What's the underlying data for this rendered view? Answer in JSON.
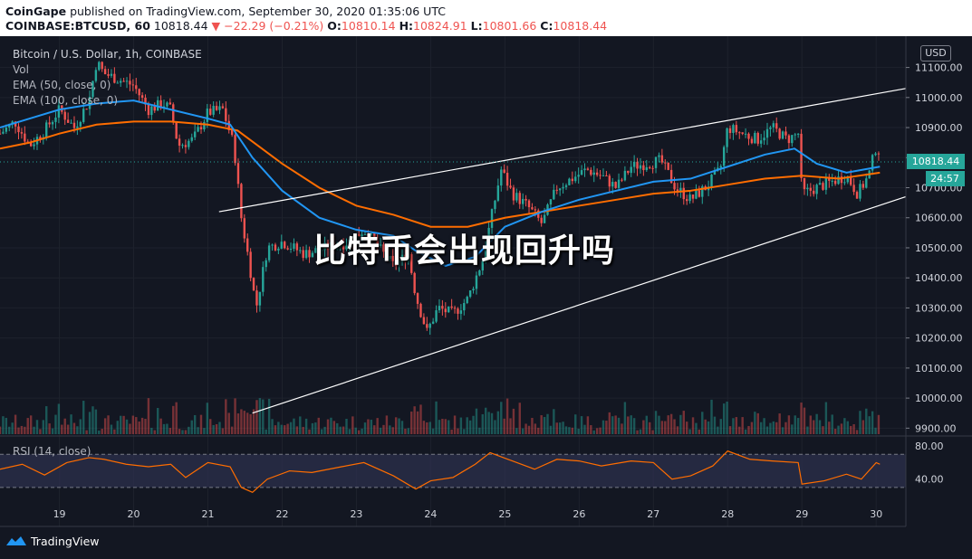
{
  "header": {
    "publisher": "CoinGape",
    "published_text": "published on TradingView.com, September 30, 2020 01:35:06 UTC",
    "symbol": "COINBASE:BTCUSD, 60",
    "last": "10818.44",
    "change": "−22.29 (−0.21%)",
    "o_label": "O:",
    "o_value": "10810.14",
    "h_label": "H:",
    "h_value": "10824.91",
    "l_label": "L:",
    "l_value": "10801.66",
    "c_label": "C:",
    "c_value": "10818.44"
  },
  "legend": {
    "title": "Bitcoin / U.S. Dollar, 1h, COINBASE",
    "vol": "Vol",
    "ema50": "EMA (50, close, 0)",
    "ema100": "EMA (100, close, 0)"
  },
  "watermark": "比特币会出现回升吗",
  "currency_button": "USD",
  "price_tag": "10818.44",
  "countdown_tag": "24:57",
  "rsi_label": "RSI (14, close)",
  "footer": "TradingView",
  "colors": {
    "up": "#26a69a",
    "down": "#ef5350",
    "ema50": "#2196f3",
    "ema100": "#ff6d00",
    "rsi": "#ff6d00",
    "rsi_band": "#2a2e4a",
    "bg": "#131722"
  },
  "chart_data": {
    "type": "candlestick",
    "title": "Bitcoin / U.S. Dollar, 1h, COINBASE",
    "ylim": [
      9880,
      11180
    ],
    "y_ticks": [
      "11100.00",
      "11000.00",
      "10900.00",
      "10800.00",
      "10700.00",
      "10600.00",
      "10500.00",
      "10400.00",
      "10300.00",
      "10200.00",
      "10100.00",
      "10000.00",
      "9900.00"
    ],
    "y_tick_values": [
      11100,
      11000,
      10900,
      10800,
      10700,
      10600,
      10500,
      10400,
      10300,
      10200,
      10100,
      10000,
      9900
    ],
    "x_ticks": [
      "19",
      "20",
      "21",
      "22",
      "23",
      "24",
      "25",
      "26",
      "27",
      "28",
      "29",
      "30"
    ],
    "x_tick_days": [
      19,
      20,
      21,
      22,
      23,
      24,
      25,
      26,
      27,
      28,
      29,
      30
    ],
    "x_range_days": [
      18.2,
      30.4
    ],
    "close_path": [
      [
        18.2,
        10880
      ],
      [
        18.4,
        10920
      ],
      [
        18.6,
        10840
      ],
      [
        18.8,
        10890
      ],
      [
        19.0,
        10960
      ],
      [
        19.2,
        10900
      ],
      [
        19.4,
        10990
      ],
      [
        19.5,
        11120
      ],
      [
        19.6,
        11080
      ],
      [
        19.8,
        11060
      ],
      [
        20.0,
        11040
      ],
      [
        20.2,
        10960
      ],
      [
        20.4,
        10980
      ],
      [
        20.5,
        10960
      ],
      [
        20.6,
        10840
      ],
      [
        20.8,
        10860
      ],
      [
        21.0,
        10950
      ],
      [
        21.2,
        10960
      ],
      [
        21.35,
        10840
      ],
      [
        21.45,
        10600
      ],
      [
        21.55,
        10460
      ],
      [
        21.65,
        10300
      ],
      [
        21.8,
        10500
      ],
      [
        22.0,
        10520
      ],
      [
        22.3,
        10480
      ],
      [
        22.6,
        10500
      ],
      [
        22.9,
        10520
      ],
      [
        23.1,
        10560
      ],
      [
        23.3,
        10500
      ],
      [
        23.5,
        10440
      ],
      [
        23.7,
        10480
      ],
      [
        23.8,
        10340
      ],
      [
        23.95,
        10220
      ],
      [
        24.1,
        10300
      ],
      [
        24.3,
        10280
      ],
      [
        24.5,
        10330
      ],
      [
        24.7,
        10460
      ],
      [
        24.8,
        10580
      ],
      [
        24.95,
        10760
      ],
      [
        25.1,
        10680
      ],
      [
        25.3,
        10640
      ],
      [
        25.5,
        10580
      ],
      [
        25.7,
        10700
      ],
      [
        25.9,
        10730
      ],
      [
        26.1,
        10760
      ],
      [
        26.3,
        10740
      ],
      [
        26.5,
        10700
      ],
      [
        26.7,
        10770
      ],
      [
        26.9,
        10780
      ],
      [
        27.1,
        10790
      ],
      [
        27.3,
        10700
      ],
      [
        27.5,
        10660
      ],
      [
        27.7,
        10700
      ],
      [
        27.9,
        10760
      ],
      [
        28.0,
        10900
      ],
      [
        28.2,
        10880
      ],
      [
        28.4,
        10860
      ],
      [
        28.6,
        10900
      ],
      [
        28.8,
        10860
      ],
      [
        28.95,
        10880
      ],
      [
        29.0,
        10680
      ],
      [
        29.2,
        10700
      ],
      [
        29.4,
        10720
      ],
      [
        29.6,
        10740
      ],
      [
        29.75,
        10680
      ],
      [
        29.9,
        10740
      ],
      [
        30.0,
        10840
      ],
      [
        30.05,
        10818
      ]
    ],
    "ema50": [
      [
        18.2,
        10900
      ],
      [
        18.6,
        10930
      ],
      [
        19.0,
        10960
      ],
      [
        19.5,
        10980
      ],
      [
        20.0,
        10990
      ],
      [
        20.5,
        10960
      ],
      [
        21.0,
        10930
      ],
      [
        21.3,
        10910
      ],
      [
        21.6,
        10800
      ],
      [
        22.0,
        10690
      ],
      [
        22.5,
        10600
      ],
      [
        23.0,
        10560
      ],
      [
        23.5,
        10540
      ],
      [
        23.8,
        10490
      ],
      [
        24.2,
        10440
      ],
      [
        24.6,
        10470
      ],
      [
        25.0,
        10570
      ],
      [
        25.5,
        10620
      ],
      [
        26.0,
        10660
      ],
      [
        26.5,
        10690
      ],
      [
        27.0,
        10720
      ],
      [
        27.5,
        10730
      ],
      [
        28.0,
        10770
      ],
      [
        28.5,
        10810
      ],
      [
        28.9,
        10830
      ],
      [
        29.2,
        10780
      ],
      [
        29.6,
        10750
      ],
      [
        30.05,
        10770
      ]
    ],
    "ema100": [
      [
        18.2,
        10830
      ],
      [
        18.6,
        10850
      ],
      [
        19.0,
        10880
      ],
      [
        19.5,
        10910
      ],
      [
        20.0,
        10920
      ],
      [
        20.5,
        10920
      ],
      [
        21.0,
        10910
      ],
      [
        21.4,
        10890
      ],
      [
        22.0,
        10780
      ],
      [
        22.5,
        10700
      ],
      [
        23.0,
        10640
      ],
      [
        23.5,
        10610
      ],
      [
        24.0,
        10570
      ],
      [
        24.5,
        10570
      ],
      [
        25.0,
        10600
      ],
      [
        25.5,
        10620
      ],
      [
        26.0,
        10640
      ],
      [
        26.5,
        10660
      ],
      [
        27.0,
        10680
      ],
      [
        27.5,
        10690
      ],
      [
        28.0,
        10710
      ],
      [
        28.5,
        10730
      ],
      [
        29.0,
        10740
      ],
      [
        29.5,
        10730
      ],
      [
        30.05,
        10750
      ]
    ],
    "trendlines": [
      {
        "from": [
          21.15,
          10620
        ],
        "to": [
          30.4,
          11030
        ]
      },
      {
        "from": [
          21.6,
          9950
        ],
        "to": [
          30.4,
          10670
        ]
      }
    ],
    "rsi": {
      "label": "RSI (14, close)",
      "y_ticks": [
        "80.00",
        "40.00"
      ],
      "y_tick_values": [
        80,
        40
      ],
      "bands": [
        70,
        30
      ],
      "values": [
        [
          18.2,
          52
        ],
        [
          18.5,
          58
        ],
        [
          18.8,
          45
        ],
        [
          19.1,
          60
        ],
        [
          19.4,
          66
        ],
        [
          19.6,
          64
        ],
        [
          19.9,
          58
        ],
        [
          20.2,
          55
        ],
        [
          20.5,
          58
        ],
        [
          20.7,
          42
        ],
        [
          21.0,
          60
        ],
        [
          21.3,
          55
        ],
        [
          21.45,
          30
        ],
        [
          21.6,
          24
        ],
        [
          21.8,
          40
        ],
        [
          22.1,
          50
        ],
        [
          22.4,
          48
        ],
        [
          22.8,
          55
        ],
        [
          23.1,
          60
        ],
        [
          23.5,
          44
        ],
        [
          23.8,
          28
        ],
        [
          24.0,
          38
        ],
        [
          24.3,
          42
        ],
        [
          24.6,
          58
        ],
        [
          24.8,
          72
        ],
        [
          25.1,
          62
        ],
        [
          25.4,
          52
        ],
        [
          25.7,
          64
        ],
        [
          26.0,
          62
        ],
        [
          26.3,
          56
        ],
        [
          26.7,
          62
        ],
        [
          27.0,
          60
        ],
        [
          27.25,
          40
        ],
        [
          27.5,
          44
        ],
        [
          27.8,
          56
        ],
        [
          28.0,
          74
        ],
        [
          28.3,
          64
        ],
        [
          28.6,
          62
        ],
        [
          28.95,
          60
        ],
        [
          29.0,
          34
        ],
        [
          29.3,
          38
        ],
        [
          29.6,
          46
        ],
        [
          29.8,
          40
        ],
        [
          30.0,
          60
        ],
        [
          30.05,
          58
        ]
      ]
    }
  }
}
